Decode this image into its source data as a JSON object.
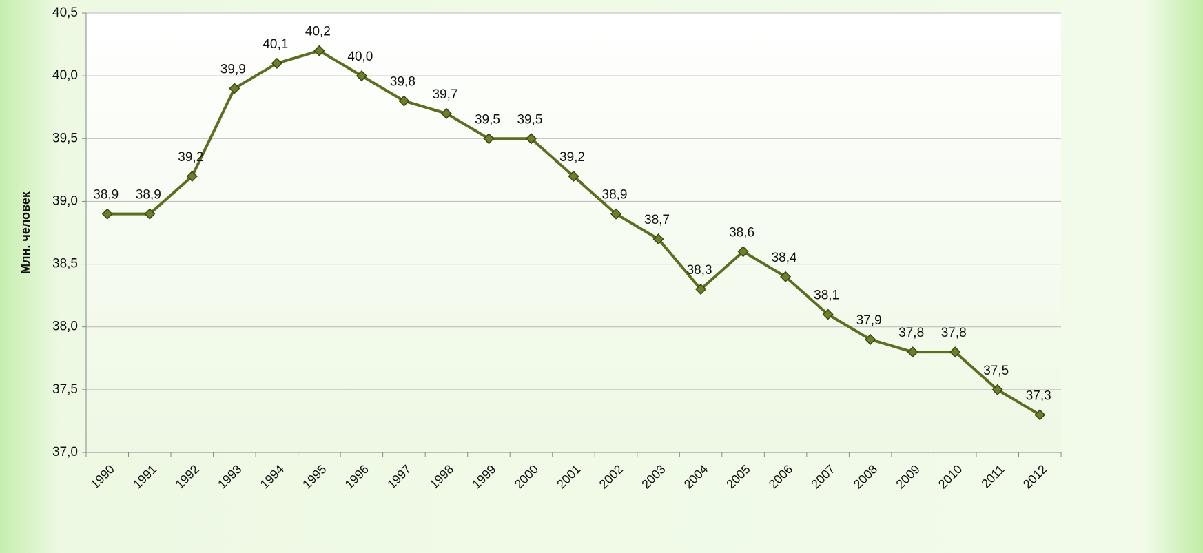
{
  "chart_data": {
    "type": "line",
    "y_label": "Млн. человек",
    "categories": [
      "1990",
      "1991",
      "1992",
      "1993",
      "1994",
      "1995",
      "1996",
      "1997",
      "1998",
      "1999",
      "2000",
      "2001",
      "2002",
      "2003",
      "2004",
      "2005",
      "2006",
      "2007",
      "2008",
      "2009",
      "2010",
      "2011",
      "2012"
    ],
    "values": [
      38.9,
      38.9,
      39.2,
      39.9,
      40.1,
      40.2,
      40.0,
      39.8,
      39.7,
      39.5,
      39.5,
      39.2,
      38.9,
      38.7,
      38.3,
      38.6,
      38.4,
      38.1,
      37.9,
      37.8,
      37.8,
      37.5,
      37.3
    ],
    "value_labels": [
      "38,9",
      "38,9",
      "39,2",
      "39,9",
      "40,1",
      "40,2",
      "40,0",
      "39,8",
      "39,7",
      "39,5",
      "39,5",
      "39,2",
      "38,9",
      "38,7",
      "38,3",
      "38,6",
      "38,4",
      "38,1",
      "37,9",
      "37,8",
      "37,8",
      "37,5",
      "37,3"
    ],
    "color": "#5b6e22",
    "ylim": [
      37.0,
      40.5
    ],
    "yticks": [
      {
        "value": 37.0,
        "label": "37,0"
      },
      {
        "value": 37.5,
        "label": "37,5"
      },
      {
        "value": 38.0,
        "label": "38,0"
      },
      {
        "value": 38.5,
        "label": "38,5"
      },
      {
        "value": 39.0,
        "label": "39,0"
      },
      {
        "value": 39.5,
        "label": "39,5"
      },
      {
        "value": 40.0,
        "label": "40,0"
      },
      {
        "value": 40.5,
        "label": "40,5"
      }
    ],
    "grid": true
  }
}
